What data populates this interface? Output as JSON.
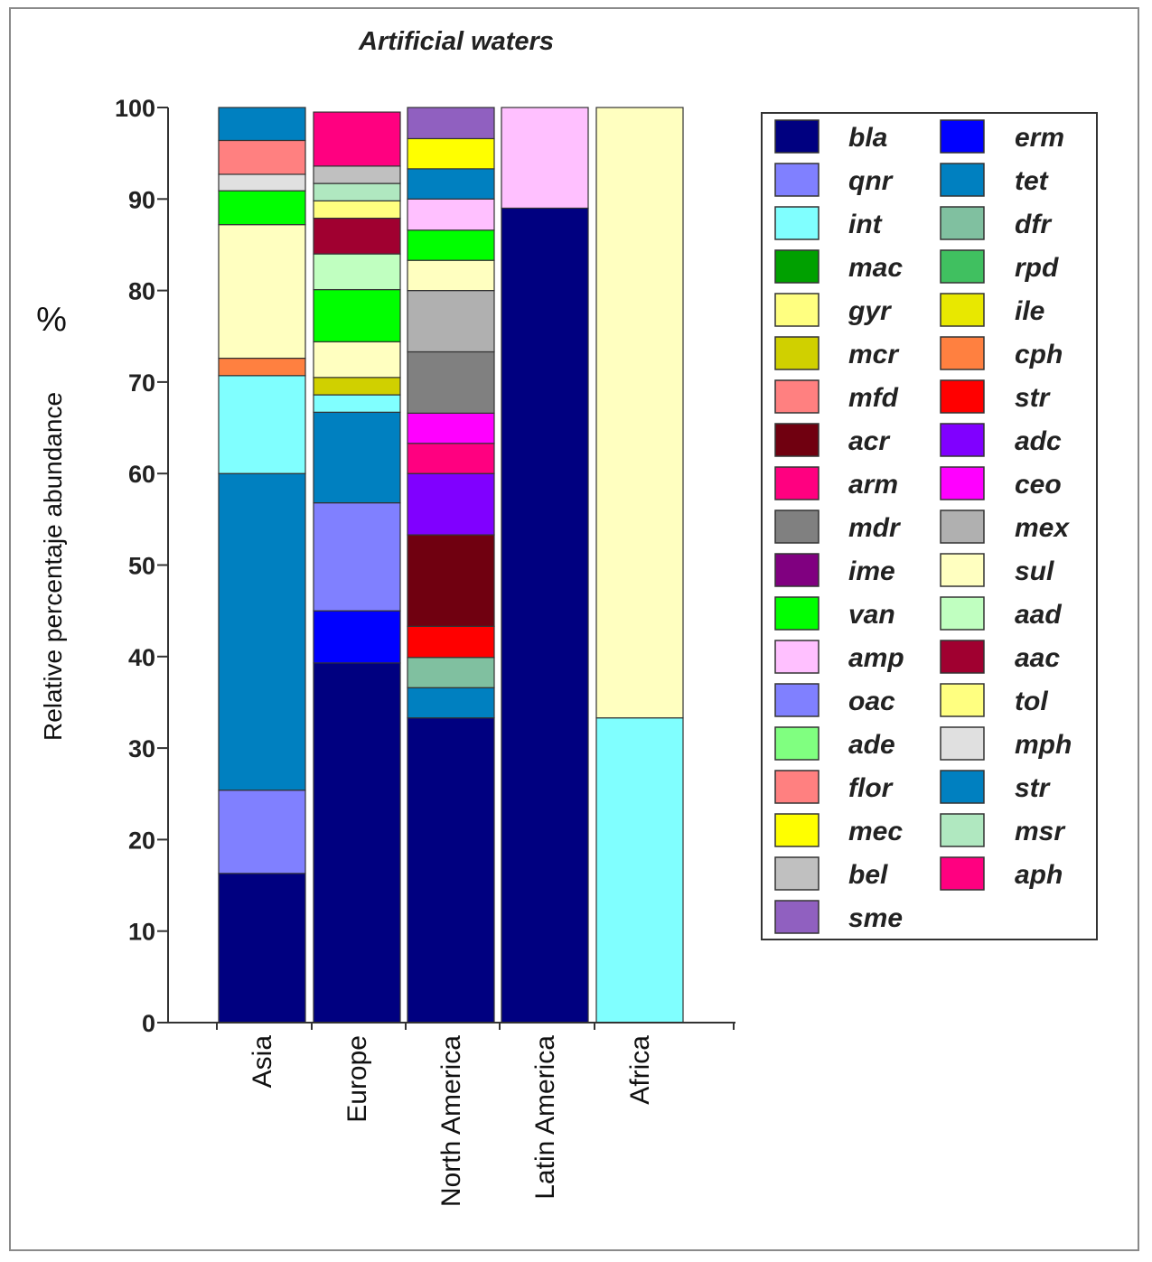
{
  "chart_data": {
    "type": "bar",
    "stacked": true,
    "title": "Artificial waters",
    "xlabel": "",
    "ylabel": "Relative percentaje abundance",
    "ylabel_unit": "%",
    "ylim": [
      0,
      100
    ],
    "yticks": [
      0,
      10,
      20,
      30,
      40,
      50,
      60,
      70,
      80,
      90,
      100
    ],
    "categories": [
      "Asia",
      "Europe",
      "North America",
      "Latin America",
      "Africa"
    ],
    "legend_position": "right",
    "legend": [
      {
        "name": "bla",
        "color": "#000080"
      },
      {
        "name": "erm",
        "color": "#0000ff"
      },
      {
        "name": "qnr",
        "color": "#8080ff"
      },
      {
        "name": "tet",
        "color": "#0080c0"
      },
      {
        "name": "int",
        "color": "#80ffff"
      },
      {
        "name": "dfr",
        "color": "#80c0a0"
      },
      {
        "name": "mac",
        "color": "#00a000"
      },
      {
        "name": "rpd",
        "color": "#40c060"
      },
      {
        "name": "gyr",
        "color": "#ffff80"
      },
      {
        "name": "ile",
        "color": "#e8e800"
      },
      {
        "name": "mcr",
        "color": "#d0d000"
      },
      {
        "name": "cph",
        "color": "#ff8040"
      },
      {
        "name": "mfd",
        "color": "#ff8080"
      },
      {
        "name": "str",
        "color": "#ff0000"
      },
      {
        "name": "acr",
        "color": "#700010"
      },
      {
        "name": "adc",
        "color": "#8000ff"
      },
      {
        "name": "arm",
        "color": "#ff0080"
      },
      {
        "name": "ceo",
        "color": "#ff00ff"
      },
      {
        "name": "mdr",
        "color": "#808080"
      },
      {
        "name": "mex",
        "color": "#b0b0b0"
      },
      {
        "name": "ime",
        "color": "#800080"
      },
      {
        "name": "sul",
        "color": "#ffffc0"
      },
      {
        "name": "van",
        "color": "#00ff00"
      },
      {
        "name": "aad",
        "color": "#c0ffc0"
      },
      {
        "name": "amp",
        "color": "#ffc0ff"
      },
      {
        "name": "aac",
        "color": "#a00030"
      },
      {
        "name": "oac",
        "color": "#8080ff"
      },
      {
        "name": "tol",
        "color": "#ffff80"
      },
      {
        "name": "ade",
        "color": "#80ff80"
      },
      {
        "name": "mph",
        "color": "#e0e0e0"
      },
      {
        "name": "flor",
        "color": "#ff8080"
      },
      {
        "name": "str",
        "color": "#0080c0"
      },
      {
        "name": "mec",
        "color": "#ffff00"
      },
      {
        "name": "msr",
        "color": "#b0e8c0"
      },
      {
        "name": "bel",
        "color": "#c0c0c0"
      },
      {
        "name": "aph",
        "color": "#ff0080"
      },
      {
        "name": "sme",
        "color": "#9060c0"
      }
    ],
    "series": [
      {
        "category": "Asia",
        "segments": [
          {
            "gene": "bla",
            "value": 16.3,
            "color": "#000080"
          },
          {
            "gene": "qnr",
            "value": 9.1,
            "color": "#8080ff"
          },
          {
            "gene": "tet",
            "value": 34.6,
            "color": "#0080c0"
          },
          {
            "gene": "int",
            "value": 10.7,
            "color": "#80ffff"
          },
          {
            "gene": "cph",
            "value": 1.9,
            "color": "#ff8040"
          },
          {
            "gene": "sul",
            "value": 14.6,
            "color": "#ffffc0"
          },
          {
            "gene": "van",
            "value": 3.7,
            "color": "#00ff00"
          },
          {
            "gene": "mph",
            "value": 1.8,
            "color": "#e0e0e0"
          },
          {
            "gene": "flor",
            "value": 3.7,
            "color": "#ff8080"
          },
          {
            "gene": "str",
            "value": 3.6,
            "color": "#0080c0"
          }
        ]
      },
      {
        "category": "Europe",
        "segments": [
          {
            "gene": "bla",
            "value": 39.3,
            "color": "#000080"
          },
          {
            "gene": "erm",
            "value": 5.7,
            "color": "#0000ff"
          },
          {
            "gene": "qnr",
            "value": 11.8,
            "color": "#8080ff"
          },
          {
            "gene": "tet",
            "value": 9.9,
            "color": "#0080c0"
          },
          {
            "gene": "int",
            "value": 1.9,
            "color": "#80ffff"
          },
          {
            "gene": "mcr",
            "value": 1.9,
            "color": "#d0d000"
          },
          {
            "gene": "sul",
            "value": 3.9,
            "color": "#ffffc0"
          },
          {
            "gene": "van",
            "value": 5.7,
            "color": "#00ff00"
          },
          {
            "gene": "aad",
            "value": 3.9,
            "color": "#c0ffc0"
          },
          {
            "gene": "aac",
            "value": 3.9,
            "color": "#a00030"
          },
          {
            "gene": "tol",
            "value": 1.9,
            "color": "#ffff80"
          },
          {
            "gene": "msr",
            "value": 1.9,
            "color": "#b0e8c0"
          },
          {
            "gene": "bel",
            "value": 1.9,
            "color": "#c0c0c0"
          },
          {
            "gene": "aph",
            "value": 5.9,
            "color": "#ff0080"
          }
        ]
      },
      {
        "category": "North America",
        "segments": [
          {
            "gene": "bla",
            "value": 33.3,
            "color": "#000080"
          },
          {
            "gene": "tet",
            "value": 3.3,
            "color": "#0080c0"
          },
          {
            "gene": "dfr",
            "value": 3.3,
            "color": "#80c0a0"
          },
          {
            "gene": "str",
            "value": 3.4,
            "color": "#ff0000"
          },
          {
            "gene": "acr",
            "value": 10.0,
            "color": "#700010"
          },
          {
            "gene": "adc",
            "value": 6.7,
            "color": "#8000ff"
          },
          {
            "gene": "arm",
            "value": 3.3,
            "color": "#ff0080"
          },
          {
            "gene": "ceo",
            "value": 3.3,
            "color": "#ff00ff"
          },
          {
            "gene": "mdr",
            "value": 6.7,
            "color": "#808080"
          },
          {
            "gene": "mex",
            "value": 6.7,
            "color": "#b0b0b0"
          },
          {
            "gene": "sul",
            "value": 3.3,
            "color": "#ffffc0"
          },
          {
            "gene": "van",
            "value": 3.3,
            "color": "#00ff00"
          },
          {
            "gene": "amp",
            "value": 3.4,
            "color": "#ffc0ff"
          },
          {
            "gene": "str",
            "value": 3.3,
            "color": "#0080c0"
          },
          {
            "gene": "mec",
            "value": 3.3,
            "color": "#ffff00"
          },
          {
            "gene": "sme",
            "value": 3.4,
            "color": "#9060c0"
          }
        ]
      },
      {
        "category": "Latin America",
        "segments": [
          {
            "gene": "bla",
            "value": 89.0,
            "color": "#000080"
          },
          {
            "gene": "amp",
            "value": 11.0,
            "color": "#ffc0ff"
          }
        ]
      },
      {
        "category": "Africa",
        "segments": [
          {
            "gene": "int",
            "value": 33.3,
            "color": "#80ffff"
          },
          {
            "gene": "sul",
            "value": 66.7,
            "color": "#ffffc0"
          }
        ]
      }
    ]
  }
}
